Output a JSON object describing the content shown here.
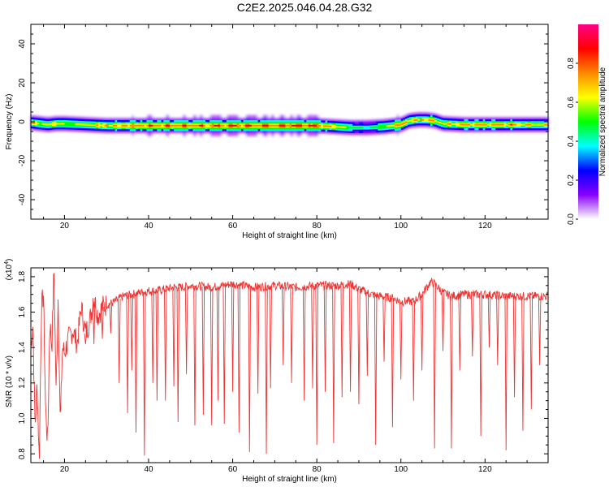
{
  "figure": {
    "title": "C2E2.2025.046.04.28.G32"
  },
  "chart_data": [
    {
      "type": "heatmap",
      "title": "C2E2.2025.046.04.28.G32",
      "xlabel": "Height of straight line (km)",
      "ylabel": "Frequency (Hz)",
      "xlim": [
        12,
        135
      ],
      "ylim": [
        -50,
        50
      ],
      "xticks": [
        20,
        40,
        60,
        80,
        100,
        120
      ],
      "yticks": [
        -40,
        -20,
        0,
        20,
        40
      ],
      "colorbar": {
        "label": "Normalized spectral amplitude",
        "range": [
          0.0,
          1.0
        ],
        "ticks": [
          "0.0",
          "0.2",
          "0.4",
          "0.6",
          "0.8"
        ],
        "colormap": [
          "#ffffff",
          "#8800ff",
          "#0000ff",
          "#00ffff",
          "#00ff00",
          "#ffff00",
          "#ff8800",
          "#ff0000",
          "#ff0088"
        ]
      },
      "ridge": {
        "x": [
          12,
          14,
          16,
          18,
          20,
          25,
          30,
          40,
          50,
          60,
          70,
          80,
          84,
          88,
          92,
          96,
          100,
          102,
          104,
          106,
          108,
          110,
          115,
          120,
          125,
          130,
          135
        ],
        "center_hz": [
          -0.5,
          -1,
          -1.5,
          -1,
          -1,
          -1.5,
          -2,
          -2,
          -2,
          -2,
          -2,
          -2,
          -2.5,
          -3,
          -3,
          -2.5,
          -1.5,
          0.5,
          1,
          1,
          0.5,
          -1,
          -1.5,
          -1.5,
          -1.5,
          -1.5,
          -1.5
        ],
        "intensity": [
          0.75,
          0.7,
          0.6,
          0.8,
          0.6,
          0.7,
          0.75,
          0.85,
          0.85,
          0.88,
          0.9,
          0.9,
          0.75,
          0.55,
          0.45,
          0.6,
          0.85,
          0.7,
          0.75,
          0.8,
          0.75,
          0.7,
          0.8,
          0.8,
          0.8,
          0.75,
          0.7
        ]
      }
    },
    {
      "type": "line",
      "xlabel": "Height of straight line (km)",
      "ylabel": "SNR (10 * v/v)",
      "yscale_label": "(x10⁴)",
      "scale_base": "(x10",
      "scale_exp": "4",
      "xlim": [
        12,
        135
      ],
      "ylim": [
        0.75,
        1.85
      ],
      "xticks": [
        20,
        40,
        60,
        80,
        100,
        120
      ],
      "yticks": [
        "0.8",
        "1.0",
        "1.2",
        "1.4",
        "1.6",
        "1.8"
      ],
      "ytick_values": [
        0.8,
        1.0,
        1.2,
        1.4,
        1.6,
        1.8
      ],
      "color": "#ee3333",
      "series": [
        {
          "x": [
            12,
            12.5,
            13,
            13.5,
            14,
            14.5,
            15,
            15.5,
            16,
            16.5,
            17,
            17.5,
            18,
            18.5,
            19,
            19.5,
            20,
            21,
            22,
            23,
            24,
            25,
            26,
            27,
            28,
            29,
            30,
            32,
            34,
            36,
            38,
            40,
            42,
            44,
            46,
            48,
            50,
            55,
            60,
            65,
            70,
            75,
            80,
            85,
            88,
            90,
            93,
            95,
            98,
            100,
            103,
            105,
            107,
            108,
            110,
            112,
            115,
            120,
            125,
            130,
            135
          ],
          "values": [
            1.4,
            1.53,
            0.95,
            1.2,
            0.75,
            1.62,
            1.7,
            1.05,
            0.86,
            1.55,
            1.4,
            1.85,
            1.15,
            1.7,
            0.95,
            1.4,
            1.37,
            1.45,
            1.5,
            1.42,
            1.63,
            1.48,
            1.55,
            1.68,
            1.58,
            1.63,
            1.64,
            1.66,
            1.69,
            1.7,
            1.71,
            1.72,
            1.72,
            1.73,
            1.74,
            1.74,
            1.75,
            1.74,
            1.76,
            1.74,
            1.75,
            1.74,
            1.75,
            1.75,
            1.76,
            1.73,
            1.7,
            1.69,
            1.68,
            1.66,
            1.66,
            1.7,
            1.77,
            1.76,
            1.71,
            1.69,
            1.7,
            1.7,
            1.69,
            1.69,
            1.69
          ]
        }
      ],
      "dips": {
        "x": [
          25,
          27,
          29,
          31,
          33,
          35,
          36,
          37,
          39,
          41,
          42,
          44,
          46,
          47,
          49,
          51,
          53,
          55,
          56.5,
          58,
          60,
          61.5,
          64,
          66,
          68,
          69,
          72,
          74,
          77,
          79,
          80,
          82,
          84,
          86,
          88,
          90,
          92,
          94,
          96,
          98,
          100,
          103,
          105,
          108,
          110,
          112,
          114,
          117,
          119,
          121,
          123,
          125,
          127,
          129,
          131,
          133
        ],
        "values": [
          1.42,
          1.42,
          1.45,
          1.48,
          1.2,
          1.03,
          1.27,
          0.92,
          0.79,
          1.2,
          1.1,
          1.1,
          1.18,
          0.98,
          1.25,
          0.96,
          1.02,
          0.96,
          1.1,
          0.97,
          1.15,
          0.92,
          0.81,
          1.14,
          0.8,
          1.17,
          1.3,
          1.2,
          1.1,
          1.17,
          0.85,
          1.15,
          0.86,
          1.12,
          1.15,
          1.08,
          1.24,
          0.85,
          1.32,
          0.95,
          1.22,
          1.1,
          1.27,
          0.83,
          1.38,
          0.83,
          1.27,
          1.35,
          0.9,
          1.4,
          1.3,
          0.82,
          1.12,
          0.93,
          1.05,
          1.3
        ]
      }
    }
  ]
}
